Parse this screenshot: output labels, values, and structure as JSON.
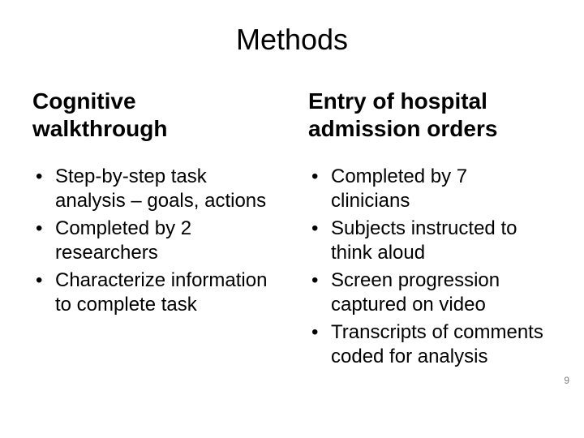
{
  "title": "Methods",
  "left": {
    "heading": "Cognitive walkthrough",
    "items": [
      "Step-by-step task analysis – goals, actions",
      "Completed by 2 researchers",
      "Characterize information to complete task"
    ]
  },
  "right": {
    "heading": "Entry of hospital admission orders",
    "items": [
      "Completed by 7 clinicians",
      "Subjects instructed to think aloud",
      "Screen progression captured on video",
      "Transcripts of comments coded for analysis"
    ]
  },
  "page_number": "9",
  "colors": {
    "background": "#ffffff",
    "text": "#000000",
    "page_number": "#7f7f7f"
  },
  "typography": {
    "title_fontsize": 36,
    "heading_fontsize": 28,
    "body_fontsize": 24,
    "pagenum_fontsize": 12
  }
}
